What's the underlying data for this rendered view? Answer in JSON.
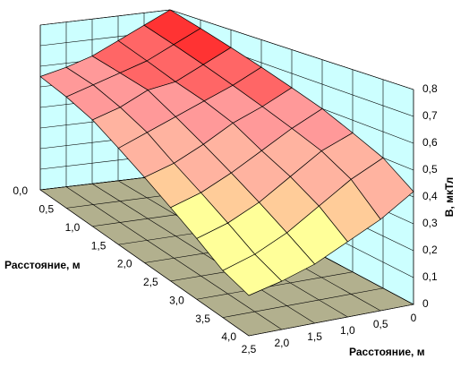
{
  "chart_data": {
    "type": "surface",
    "x_label": "Расстояние, м",
    "y_label": "Расстояние, м",
    "z_label": "B, мкТл",
    "x": [
      0,
      0.5,
      1,
      1.5,
      2,
      2.5,
      3,
      3.5,
      4
    ],
    "y": [
      0,
      0.5,
      1,
      1.5,
      2,
      2.5
    ],
    "values": [
      [
        0.8,
        0.74,
        0.68,
        0.62,
        0.58,
        0.55
      ],
      [
        0.76,
        0.7,
        0.64,
        0.6,
        0.56,
        0.52
      ],
      [
        0.72,
        0.66,
        0.6,
        0.58,
        0.52,
        0.48
      ],
      [
        0.68,
        0.62,
        0.57,
        0.52,
        0.47,
        0.42
      ],
      [
        0.64,
        0.58,
        0.53,
        0.46,
        0.4,
        0.36
      ],
      [
        0.6,
        0.54,
        0.47,
        0.4,
        0.34,
        0.3
      ],
      [
        0.55,
        0.5,
        0.42,
        0.34,
        0.28,
        0.24
      ],
      [
        0.5,
        0.44,
        0.36,
        0.28,
        0.22,
        0.18
      ],
      [
        0.42,
        0.34,
        0.28,
        0.22,
        0.18,
        0.15
      ]
    ],
    "xlim": [
      0,
      4
    ],
    "xticks": [
      {
        "value": 0,
        "label": "0,0"
      },
      {
        "value": 0.5,
        "label": "0,5"
      },
      {
        "value": 1,
        "label": "1,0"
      },
      {
        "value": 1.5,
        "label": "1,5"
      },
      {
        "value": 2,
        "label": "2,0"
      },
      {
        "value": 2.5,
        "label": "2,5"
      },
      {
        "value": 3,
        "label": "3,0"
      },
      {
        "value": 3.5,
        "label": "3,5"
      },
      {
        "value": 4,
        "label": "4,0"
      }
    ],
    "ylim": [
      0,
      2.5
    ],
    "yticks": [
      0,
      {
        "value": 0.5,
        "label": "0,5"
      },
      {
        "value": 1,
        "label": "1,0"
      },
      {
        "value": 1.5,
        "label": "1,5"
      },
      {
        "value": 2,
        "label": "2,0"
      },
      {
        "value": 2.5,
        "label": "2,5"
      }
    ],
    "zlim": [
      0,
      0.8
    ],
    "zticks": [
      0,
      {
        "value": 0.1,
        "label": "0,1"
      },
      {
        "value": 0.2,
        "label": "0,2"
      },
      {
        "value": 0.3,
        "label": "0,3"
      },
      {
        "value": 0.4,
        "label": "0,4"
      },
      {
        "value": 0.5,
        "label": "0,5"
      },
      {
        "value": 0.6,
        "label": "0,6"
      },
      {
        "value": 0.7,
        "label": "0,7"
      },
      {
        "value": 0.8,
        "label": "0,8"
      }
    ],
    "band_colors": [
      "#ffffcc",
      "#ffff99",
      "#ffff99",
      "#ffcc99",
      "#ffb3a0",
      "#ff9999",
      "#ff6666",
      "#ff3333"
    ],
    "wall_color": "#ccffff",
    "floor_color": "#b2b08e",
    "grid": true
  }
}
